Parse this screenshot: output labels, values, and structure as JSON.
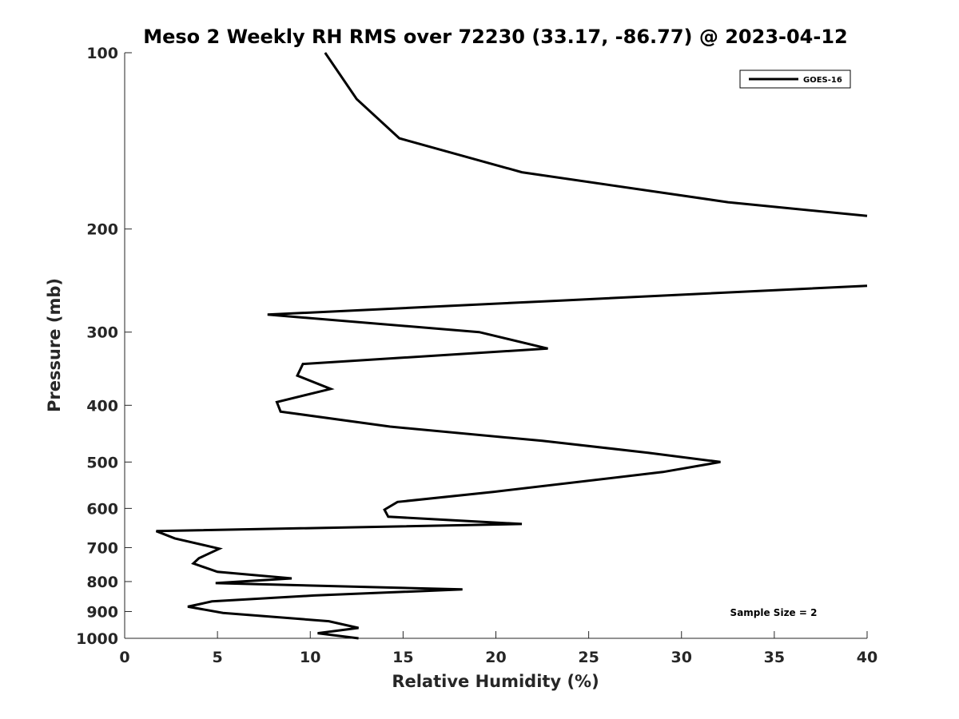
{
  "chart_data": {
    "type": "line",
    "title": "Meso 2 Weekly RH RMS over 72230 (33.17, -86.77) @ 2023-04-12",
    "xlabel": "Relative Humidity (%)",
    "ylabel": "Pressure (mb)",
    "xlim": [
      0,
      40
    ],
    "ylim": [
      100,
      1000
    ],
    "yscale": "log",
    "yreverse": true,
    "grid": false,
    "legend_position": "top-right",
    "xticks": [
      0,
      5,
      10,
      15,
      20,
      25,
      30,
      35,
      40
    ],
    "xtick_labels": [
      "0",
      "5",
      "10",
      "15",
      "20",
      "25",
      "30",
      "35",
      "40"
    ],
    "yticks": [
      100,
      200,
      300,
      400,
      500,
      600,
      700,
      800,
      900,
      1000
    ],
    "ytick_labels": [
      "100",
      "200",
      "300",
      "400",
      "500",
      "600",
      "700",
      "800",
      "900",
      "1000"
    ],
    "series": [
      {
        "name": "GOES-16",
        "color": "#000000",
        "segments": [
          [
            [
              10.8,
              100
            ],
            [
              12.5,
              120
            ],
            [
              14.8,
              140
            ],
            [
              21.4,
              160
            ],
            [
              32.5,
              180
            ],
            [
              40.0,
              190
            ]
          ],
          [
            [
              40.0,
              250
            ],
            [
              23.5,
              265
            ],
            [
              7.7,
              280
            ],
            [
              19.1,
              300
            ],
            [
              22.8,
              320
            ],
            [
              9.6,
              340
            ],
            [
              9.3,
              356
            ],
            [
              11.1,
              375
            ],
            [
              8.2,
              395
            ],
            [
              8.4,
              410
            ],
            [
              14.3,
              435
            ],
            [
              22.5,
              460
            ],
            [
              28.2,
              482
            ],
            [
              32.1,
              500
            ],
            [
              29.0,
              520
            ],
            [
              19.9,
              562
            ],
            [
              14.7,
              585
            ],
            [
              14.0,
              603
            ],
            [
              14.2,
              620
            ],
            [
              21.4,
              638
            ],
            [
              1.7,
              656
            ],
            [
              2.7,
              675
            ],
            [
              5.1,
              703
            ],
            [
              4.0,
              730
            ],
            [
              3.7,
              745
            ],
            [
              5.0,
              770
            ],
            [
              9.0,
              790
            ],
            [
              4.9,
              805
            ],
            [
              18.2,
              825
            ],
            [
              10.2,
              845
            ],
            [
              4.7,
              865
            ],
            [
              3.4,
              883
            ],
            [
              5.3,
              905
            ],
            [
              11.0,
              935
            ],
            [
              12.6,
              960
            ],
            [
              10.4,
              980
            ],
            [
              12.6,
              1000
            ]
          ]
        ]
      }
    ],
    "annotations": [
      {
        "text": "Sample Size = 2",
        "x": 35,
        "y": 900
      }
    ]
  }
}
